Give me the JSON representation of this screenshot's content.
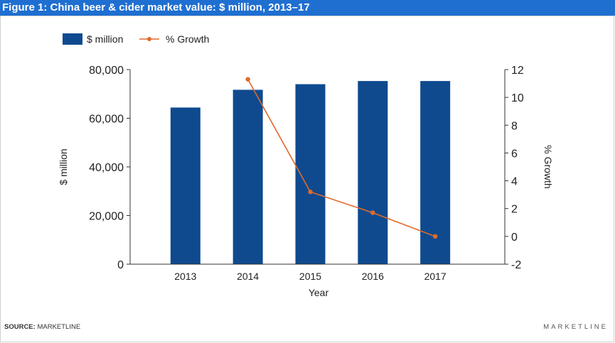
{
  "title": "Figure 1: China beer & cider market value: $ million, 2013–17",
  "source_label": "SOURCE:",
  "source_value": "MARKETLINE",
  "brand": "MARKETLINE",
  "colors": {
    "bar": "#0f4a8f",
    "line": "#e06a2b",
    "title_bg": "#1f6fd1"
  },
  "chart_data": {
    "type": "bar",
    "categories": [
      "2013",
      "2014",
      "2015",
      "2016",
      "2017"
    ],
    "series": [
      {
        "name": "$ million",
        "type": "bar",
        "axis": "left",
        "values": [
          64400,
          71700,
          74000,
          75300,
          75300
        ]
      },
      {
        "name": "% Growth",
        "type": "line",
        "axis": "right",
        "values": [
          null,
          11.3,
          3.2,
          1.7,
          0.0
        ]
      }
    ],
    "xlabel": "Year",
    "ylabel": "$ million",
    "y2label": "% Growth",
    "ylim": [
      0,
      80000
    ],
    "y2lim": [
      -2,
      12
    ],
    "yticks": [
      "0",
      "20,000",
      "40,000",
      "60,000",
      "80,000"
    ],
    "y2ticks": [
      "-2",
      "0",
      "2",
      "4",
      "6",
      "8",
      "10",
      "12"
    ],
    "legend_position": "top-left",
    "grid": false
  }
}
